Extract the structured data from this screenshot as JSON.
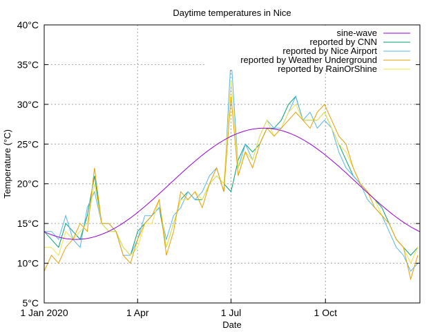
{
  "chart_data": {
    "type": "line",
    "title": "Daytime temperatures in Nice",
    "xlabel": "Date",
    "ylabel": "Temperature (°C)",
    "ylim": [
      5,
      40
    ],
    "xlim": [
      "2020-01-01",
      "2020-12-31"
    ],
    "yticks": [
      "5°C",
      "10°C",
      "15°C",
      "20°C",
      "25°C",
      "30°C",
      "35°C",
      "40°C"
    ],
    "xticks": [
      {
        "date": "2020-01-01",
        "label": "1 Jan 2020"
      },
      {
        "date": "2020-04-01",
        "label": "1 Apr"
      },
      {
        "date": "2020-07-01",
        "label": "1 Jul"
      },
      {
        "date": "2020-10-01",
        "label": "1 Oct"
      }
    ],
    "grid": true,
    "legend_position": "top-right",
    "sample_interval_days": 7,
    "series": [
      {
        "name": "sine-wave",
        "color": "#9400d3",
        "function": {
          "mean": 20,
          "amplitude": 7,
          "minimum_date": "2020-02-01",
          "period_days": 366
        }
      },
      {
        "name": "reported by CNN",
        "color": "#009e73",
        "values": [
          14,
          13,
          12,
          15,
          14,
          13,
          16,
          21,
          15,
          14,
          14,
          12,
          11,
          14,
          15,
          16,
          17,
          12,
          15,
          18,
          19,
          18,
          18,
          20,
          21,
          20,
          19,
          23,
          25,
          24,
          25,
          27,
          27,
          28,
          30,
          31,
          28,
          28,
          28,
          29,
          27,
          25,
          23,
          21,
          20,
          19,
          18,
          17,
          15,
          13,
          12,
          11,
          12
        ]
      },
      {
        "name": "reported by Nice Airport",
        "color": "#56b4e9",
        "values": [
          14,
          14,
          13,
          16,
          13,
          12,
          17,
          19,
          15,
          15,
          14,
          11,
          11,
          13,
          16,
          16,
          17,
          13,
          16,
          17,
          19,
          18,
          19,
          21,
          22,
          19,
          36,
          22,
          25,
          23,
          26,
          28,
          27,
          27,
          29,
          31,
          28,
          29,
          27,
          28,
          27,
          24,
          22,
          21,
          20,
          18,
          17,
          16,
          14,
          12,
          11,
          9,
          10
        ]
      },
      {
        "name": "reported by Weather Underground",
        "color": "#e69f00",
        "values": [
          9,
          11,
          10,
          12,
          13,
          15,
          14,
          22,
          15,
          15,
          14,
          11,
          10,
          13,
          15,
          16,
          18,
          11,
          14,
          19,
          18,
          19,
          17,
          20,
          22,
          19,
          31,
          21,
          24,
          22,
          25,
          27,
          26,
          27,
          28,
          29,
          28,
          27,
          29,
          30,
          28,
          26,
          25,
          22,
          20,
          19,
          17,
          16,
          15,
          13,
          12,
          8,
          11
        ]
      },
      {
        "name": "reported by RainOrShine",
        "color": "#f0e442",
        "values": [
          12,
          12,
          11,
          14,
          13,
          14,
          15,
          20,
          15,
          14,
          14,
          12,
          11,
          12,
          15,
          15,
          18,
          12,
          15,
          18,
          18,
          19,
          18,
          20,
          21,
          20,
          33,
          22,
          24,
          23,
          26,
          28,
          26,
          27,
          29,
          30,
          28,
          28,
          28,
          29,
          27,
          25,
          24,
          22,
          20,
          19,
          18,
          16,
          15,
          13,
          12,
          10,
          12
        ]
      }
    ]
  }
}
